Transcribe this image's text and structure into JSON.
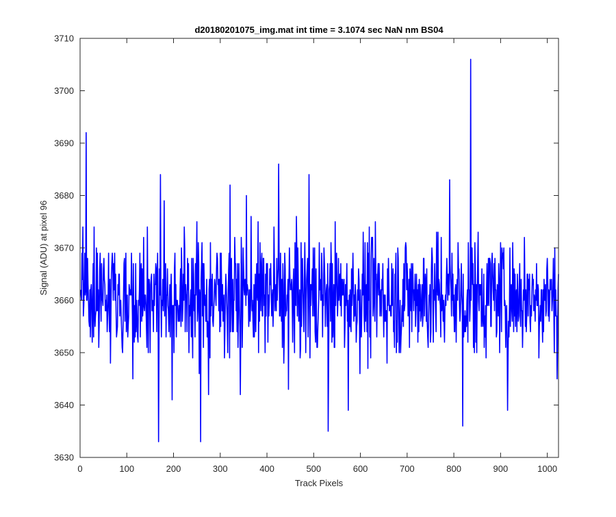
{
  "chart_data": {
    "type": "line",
    "title": "d20180201075_img.mat int time = 3.1074 sec  NaN nm BS04",
    "xlabel": "Track Pixels",
    "ylabel": "Signal (ADU) at pixel 96",
    "xlim": [
      0,
      1024
    ],
    "ylim": [
      3630,
      3710
    ],
    "xticks": [
      "0",
      "100",
      "200",
      "300",
      "400",
      "500",
      "600",
      "700",
      "800",
      "900",
      "1000"
    ],
    "yticks": [
      "3630",
      "3640",
      "3650",
      "3660",
      "3670",
      "3680",
      "3690",
      "3700",
      "3710"
    ],
    "grid": false,
    "legend": "none",
    "series": [
      {
        "color": "#0000ff",
        "noise_center": 3661,
        "noise_spread": 7,
        "x_first": 1,
        "x_last": 1024,
        "points": [
          [
            13,
            3692
          ],
          [
            168,
            3633
          ],
          [
            172,
            3684
          ],
          [
            197,
            3641
          ],
          [
            258,
            3633
          ],
          [
            275,
            3642
          ],
          [
            321,
            3682
          ],
          [
            343,
            3642
          ],
          [
            356,
            3680
          ],
          [
            425,
            3686
          ],
          [
            446,
            3643
          ],
          [
            490,
            3684
          ],
          [
            531,
            3635
          ],
          [
            574,
            3639
          ],
          [
            791,
            3683
          ],
          [
            819,
            3636
          ],
          [
            836,
            3706
          ],
          [
            915,
            3639
          ],
          [
            1021,
            3645
          ]
        ]
      }
    ]
  },
  "colors": {
    "line": "#0000ff",
    "axes": "#262626",
    "background": "#ffffff"
  }
}
